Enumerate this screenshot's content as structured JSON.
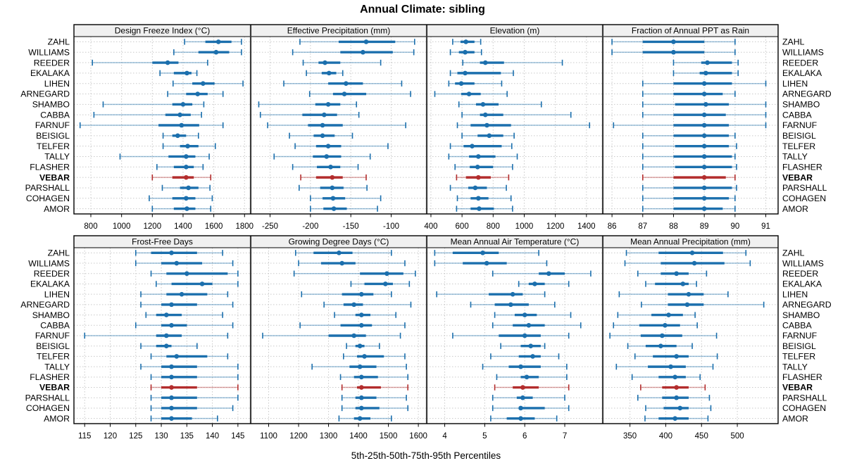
{
  "chart_data": {
    "type": "trellis-interval",
    "title": "Annual Climate: sibling",
    "xlabel": "5th-25th-50th-75th-95th Percentiles",
    "percentiles": [
      5,
      25,
      50,
      75,
      95
    ],
    "legend_position": "none",
    "grid": "dotted",
    "stations": [
      "ZAHL",
      "WILLIAMS",
      "REEDER",
      "EKALAKA",
      "LIHEN",
      "ARNEGARD",
      "SHAMBO",
      "CABBA",
      "FARNUF",
      "BEISIGL",
      "TELFER",
      "TALLY",
      "FLASHER",
      "VEBAR",
      "PARSHALL",
      "COHAGEN",
      "AMOR"
    ],
    "highlight_station": "VEBAR",
    "colors": {
      "series": "#1b6fad",
      "highlight": "#b32d2d",
      "strip_bg": "#f0f0f0",
      "grid_line": "#c9c9c9",
      "border": "#000000",
      "divider": "#3a3a3a"
    },
    "panels": [
      {
        "title": "Design Freeze Index (°C)",
        "xlim": [
          690,
          1840
        ],
        "ticks": [
          800,
          1000,
          1200,
          1400,
          1600,
          1800
        ],
        "values": [
          [
            1410,
            1545,
            1630,
            1715,
            1780
          ],
          [
            1340,
            1500,
            1615,
            1700,
            1780
          ],
          [
            810,
            1200,
            1300,
            1370,
            1560
          ],
          [
            1250,
            1340,
            1425,
            1455,
            1490
          ],
          [
            1335,
            1460,
            1530,
            1605,
            1790
          ],
          [
            1300,
            1420,
            1495,
            1560,
            1660
          ],
          [
            880,
            1330,
            1400,
            1460,
            1535
          ],
          [
            820,
            1285,
            1380,
            1450,
            1520
          ],
          [
            730,
            1240,
            1390,
            1505,
            1660
          ],
          [
            1270,
            1330,
            1365,
            1420,
            1500
          ],
          [
            1270,
            1380,
            1430,
            1500,
            1610
          ],
          [
            990,
            1305,
            1420,
            1480,
            1570
          ],
          [
            1230,
            1340,
            1420,
            1470,
            1530
          ],
          [
            1200,
            1330,
            1420,
            1470,
            1580
          ],
          [
            1265,
            1380,
            1435,
            1500,
            1575
          ],
          [
            1180,
            1330,
            1420,
            1480,
            1590
          ],
          [
            1200,
            1340,
            1425,
            1480,
            1580
          ]
        ]
      },
      {
        "title": "Effective Precipitation (mm)",
        "xlim": [
          -274,
          -56
        ],
        "ticks": [
          -250,
          -200,
          -150,
          -100
        ],
        "values": [
          [
            -213,
            -165,
            -131,
            -95,
            -71
          ],
          [
            -222,
            -163,
            -135,
            -98,
            -72
          ],
          [
            -209,
            -190,
            -182,
            -163,
            -113
          ],
          [
            -205,
            -186,
            -177,
            -168,
            -160
          ],
          [
            -233,
            -178,
            -156,
            -135,
            -87
          ],
          [
            -201,
            -172,
            -158,
            -131,
            -76
          ],
          [
            -264,
            -194,
            -178,
            -163,
            -143
          ],
          [
            -262,
            -210,
            -183,
            -167,
            -140
          ],
          [
            -253,
            -203,
            -185,
            -160,
            -82
          ],
          [
            -226,
            -196,
            -185,
            -170,
            -148
          ],
          [
            -219,
            -193,
            -178,
            -162,
            -104
          ],
          [
            -245,
            -197,
            -180,
            -162,
            -126
          ],
          [
            -222,
            -192,
            -175,
            -163,
            -141
          ],
          [
            -212,
            -193,
            -173,
            -160,
            -131
          ],
          [
            -214,
            -188,
            -173,
            -159,
            -130
          ],
          [
            -200,
            -185,
            -172,
            -157,
            -113
          ],
          [
            -200,
            -184,
            -171,
            -155,
            -117
          ]
        ]
      },
      {
        "title": "Elevation (m)",
        "xlim": [
          373,
          1505
        ],
        "ticks": [
          400,
          600,
          800,
          1000,
          1200,
          1400
        ],
        "values": [
          [
            540,
            590,
            625,
            680,
            720
          ],
          [
            525,
            580,
            620,
            680,
            725
          ],
          [
            605,
            715,
            750,
            870,
            1245
          ],
          [
            525,
            570,
            620,
            850,
            930
          ],
          [
            515,
            555,
            595,
            680,
            855
          ],
          [
            425,
            595,
            645,
            720,
            890
          ],
          [
            580,
            690,
            735,
            835,
            1110
          ],
          [
            600,
            715,
            750,
            865,
            1300
          ],
          [
            570,
            655,
            760,
            915,
            1420
          ],
          [
            600,
            700,
            775,
            865,
            935
          ],
          [
            525,
            610,
            665,
            855,
            920
          ],
          [
            515,
            645,
            705,
            815,
            955
          ],
          [
            555,
            650,
            700,
            800,
            925
          ],
          [
            565,
            625,
            705,
            785,
            900
          ],
          [
            525,
            640,
            685,
            760,
            885
          ],
          [
            570,
            655,
            705,
            770,
            915
          ],
          [
            565,
            655,
            710,
            805,
            925
          ]
        ]
      },
      {
        "title": "Fraction of Annual PPT as Rain",
        "xlim": [
          85.7,
          91.4
        ],
        "ticks": [
          86,
          87,
          88,
          89,
          90,
          91
        ],
        "values": [
          [
            86,
            87,
            88,
            89,
            90
          ],
          [
            86,
            87,
            88,
            89,
            90
          ],
          [
            88,
            88.9,
            89.1,
            89.9,
            90.1
          ],
          [
            88,
            88.85,
            89.05,
            89.9,
            90.1
          ],
          [
            87,
            88,
            89,
            89.9,
            91
          ],
          [
            87,
            88,
            89,
            89.6,
            90
          ],
          [
            87,
            88.05,
            89.05,
            89.8,
            91
          ],
          [
            87,
            88,
            89,
            89.7,
            91
          ],
          [
            86.05,
            88,
            89,
            89.8,
            91
          ],
          [
            87,
            88,
            89,
            89.8,
            90
          ],
          [
            87,
            88.05,
            89,
            89.8,
            90.05
          ],
          [
            87,
            88,
            89,
            89.9,
            90
          ],
          [
            87,
            88.05,
            89,
            89.9,
            90.05
          ],
          [
            87,
            88,
            89,
            89.7,
            90
          ],
          [
            87,
            88,
            89,
            89.9,
            90.05
          ],
          [
            87,
            88,
            89,
            89.8,
            90
          ],
          [
            87,
            88,
            89,
            89.6,
            90
          ]
        ]
      },
      {
        "title": "Frost-Free Days",
        "xlim": [
          112.9,
          147.5
        ],
        "ticks": [
          115,
          120,
          125,
          130,
          135,
          140,
          145
        ],
        "values": [
          [
            125,
            128,
            132,
            137,
            142
          ],
          [
            125,
            130,
            133,
            138,
            144
          ],
          [
            128,
            131,
            135,
            143,
            145
          ],
          [
            129,
            132,
            138,
            140,
            145
          ],
          [
            126,
            131,
            134,
            139,
            143
          ],
          [
            126,
            130,
            132,
            137,
            144
          ],
          [
            127,
            129,
            131,
            134,
            142
          ],
          [
            125,
            130,
            132,
            135,
            144
          ],
          [
            115,
            129,
            131,
            134,
            143
          ],
          [
            126,
            129,
            131,
            132,
            137
          ],
          [
            128,
            131,
            133,
            139,
            143
          ],
          [
            126,
            130,
            132,
            137,
            145
          ],
          [
            128,
            130,
            132,
            137,
            145
          ],
          [
            128,
            130,
            132,
            137,
            145
          ],
          [
            128,
            130,
            132,
            137,
            145
          ],
          [
            128,
            130,
            132,
            137,
            144
          ],
          [
            128,
            130,
            132,
            136,
            141
          ]
        ]
      },
      {
        "title": "Growing Degree Days (°C)",
        "xlim": [
          1040,
          1628
        ],
        "ticks": [
          1100,
          1200,
          1300,
          1400,
          1500,
          1600
        ],
        "values": [
          [
            1190,
            1250,
            1335,
            1380,
            1510
          ],
          [
            1200,
            1275,
            1345,
            1390,
            1555
          ],
          [
            1185,
            1405,
            1495,
            1550,
            1590
          ],
          [
            1375,
            1420,
            1490,
            1515,
            1570
          ],
          [
            1210,
            1345,
            1410,
            1450,
            1510
          ],
          [
            1285,
            1350,
            1385,
            1415,
            1575
          ],
          [
            1320,
            1390,
            1410,
            1440,
            1525
          ],
          [
            1205,
            1340,
            1410,
            1445,
            1555
          ],
          [
            1080,
            1300,
            1385,
            1425,
            1540
          ],
          [
            1360,
            1390,
            1405,
            1420,
            1470
          ],
          [
            1350,
            1395,
            1420,
            1485,
            1555
          ],
          [
            1245,
            1370,
            1405,
            1460,
            1560
          ],
          [
            1340,
            1385,
            1410,
            1465,
            1565
          ],
          [
            1345,
            1395,
            1410,
            1475,
            1565
          ],
          [
            1345,
            1390,
            1410,
            1460,
            1560
          ],
          [
            1345,
            1390,
            1410,
            1470,
            1565
          ],
          [
            1335,
            1385,
            1405,
            1440,
            1510
          ]
        ]
      },
      {
        "title": "Mean Annual Air Temperature (°C)",
        "xlim": [
          3.55,
          7.95
        ],
        "ticks": [
          4,
          5,
          6,
          7
        ],
        "values": [
          [
            3.75,
            4.2,
            4.95,
            5.35,
            6.35
          ],
          [
            3.75,
            4.45,
            5.05,
            5.55,
            6.55
          ],
          [
            5.2,
            6.35,
            6.6,
            7.0,
            7.65
          ],
          [
            5.85,
            6.1,
            6.25,
            6.5,
            7.1
          ],
          [
            3.8,
            5.1,
            5.7,
            5.95,
            6.5
          ],
          [
            4.65,
            5.25,
            5.65,
            6.1,
            6.75
          ],
          [
            5.25,
            5.75,
            6.0,
            6.3,
            7.15
          ],
          [
            5.2,
            5.7,
            6.1,
            6.5,
            7.4
          ],
          [
            4.2,
            5.35,
            6.0,
            6.4,
            7.1
          ],
          [
            5.4,
            5.9,
            6.15,
            6.4,
            6.5
          ],
          [
            5.15,
            5.85,
            6.2,
            6.4,
            6.85
          ],
          [
            4.95,
            5.6,
            5.9,
            6.4,
            7.05
          ],
          [
            5.3,
            5.9,
            6.05,
            6.35,
            7.05
          ],
          [
            5.25,
            5.7,
            5.95,
            6.35,
            7.1
          ],
          [
            5.2,
            5.8,
            5.95,
            6.2,
            7.0
          ],
          [
            5.2,
            5.85,
            5.9,
            6.5,
            7.1
          ],
          [
            5.15,
            5.55,
            5.9,
            6.25,
            6.8
          ]
        ]
      },
      {
        "title": "Mean Annual Precipitation (mm)",
        "xlim": [
          312,
          557
        ],
        "ticks": [
          350,
          400,
          450,
          500
        ],
        "values": [
          [
            345,
            390,
            437,
            480,
            512
          ],
          [
            343,
            393,
            440,
            482,
            518
          ],
          [
            361,
            393,
            415,
            432,
            457
          ],
          [
            372,
            385,
            424,
            432,
            443
          ],
          [
            335,
            403,
            432,
            453,
            487
          ],
          [
            366,
            403,
            430,
            453,
            537
          ],
          [
            333,
            380,
            404,
            424,
            441
          ],
          [
            327,
            363,
            399,
            420,
            444
          ],
          [
            322,
            365,
            395,
            423,
            471
          ],
          [
            347,
            372,
            393,
            415,
            437
          ],
          [
            357,
            382,
            415,
            432,
            472
          ],
          [
            331,
            375,
            407,
            428,
            466
          ],
          [
            353,
            390,
            413,
            428,
            448
          ],
          [
            365,
            395,
            415,
            432,
            455
          ],
          [
            361,
            395,
            415,
            432,
            461
          ],
          [
            372,
            397,
            420,
            432,
            463
          ],
          [
            371,
            390,
            413,
            432,
            459
          ]
        ]
      }
    ]
  }
}
